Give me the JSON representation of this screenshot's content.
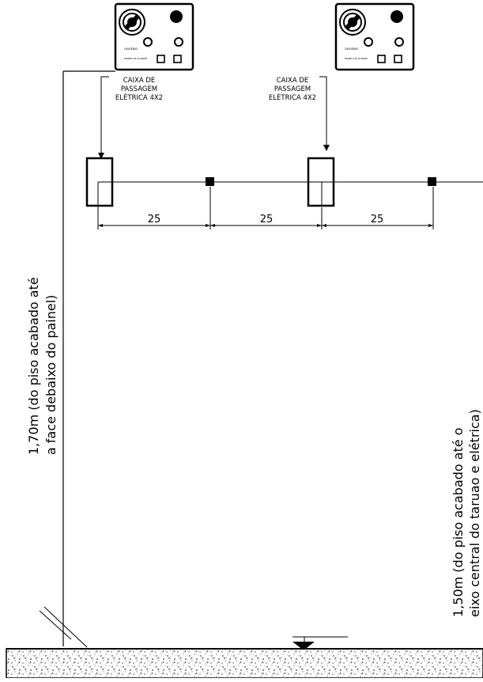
{
  "panels": [
    {
      "status_text": "OXIGÊNIO",
      "label": "PAINEL DE ALARME",
      "status_color": "#3a9a3a"
    },
    {
      "status_text": "OXIGÊNIO",
      "label": "PAINEL DE ALARME",
      "status_color": "#c8b400"
    }
  ],
  "callouts": [
    {
      "line1": "CAIXA DE",
      "line2": "PASSAGEM",
      "line3": "ELÉTRICA 4X2"
    },
    {
      "line1": "CAIXA DE",
      "line2": "PASSAGEM",
      "line3": "ELÉTRICA 4X2"
    }
  ],
  "dimensions": [
    "25",
    "25",
    "25"
  ],
  "heights": {
    "left_line1": "1,70m (do piso acabado até",
    "left_line2": "a face debaixo do painel)",
    "right_line1": "1,50m (do piso acabado até o",
    "right_line2": "eixo central do taruao e elétrica)"
  },
  "colors": {
    "line": "#000000",
    "floor_fill": "#e8e8e8"
  }
}
